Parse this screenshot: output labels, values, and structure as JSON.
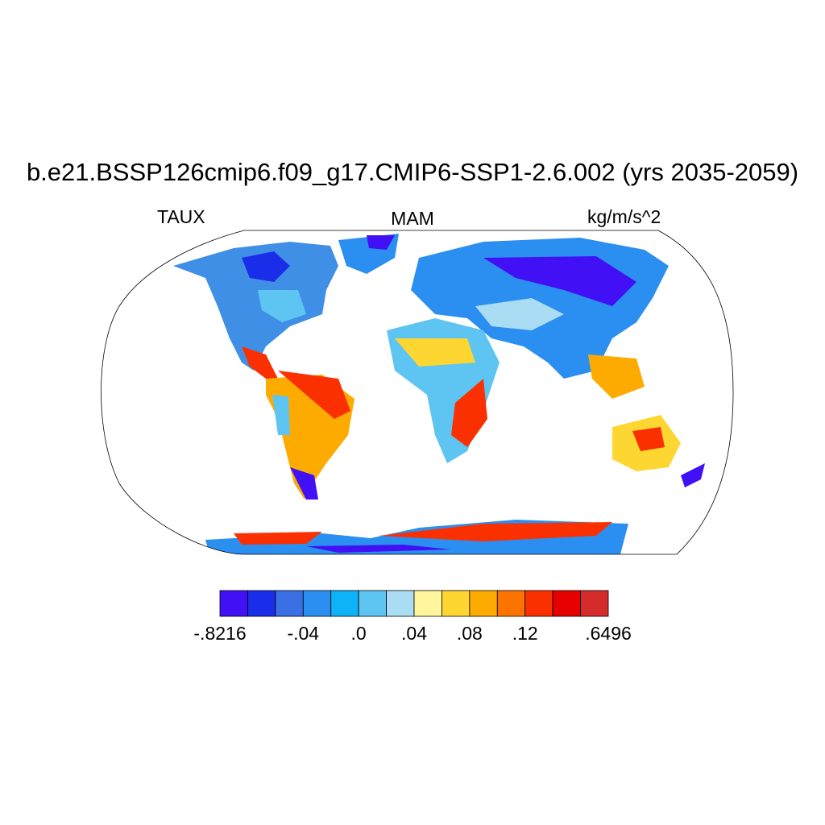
{
  "title": "b.e21.BSSP126cmip6.f09_g17.CMIP6-SSP1-2.6.002 (yrs 2035-2059)",
  "left_label": "TAUX",
  "center_label": "MAM",
  "right_label": "kg/m/s^2",
  "colorbar": {
    "colors": [
      "#4210f5",
      "#1a2de8",
      "#3b6fe4",
      "#2a8ff0",
      "#0db2f7",
      "#5ec5f2",
      "#aadcf4",
      "#fff59d",
      "#fed631",
      "#fdab00",
      "#fc7400",
      "#fb3000",
      "#e60000",
      "#d42b2b"
    ],
    "labels": [
      {
        "text": "-.8216",
        "boundary": 0
      },
      {
        "text": "-.04",
        "boundary": 3
      },
      {
        "text": ".0",
        "boundary": 5
      },
      {
        "text": ".04",
        "boundary": 7
      },
      {
        "text": ".08",
        "boundary": 9
      },
      {
        "text": ".12",
        "boundary": 11
      },
      {
        "text": ".6496",
        "boundary": 14
      }
    ]
  },
  "projection": "Robinson",
  "land_color": "#ffffff",
  "coastline_color": "#000000"
}
